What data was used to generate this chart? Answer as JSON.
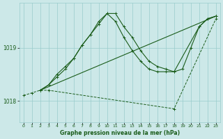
{
  "background_color": "#cce8e8",
  "grid_color": "#99cccc",
  "line_color": "#1a5c1a",
  "title": "Graphe pression niveau de la mer (hPa)",
  "xlim": [
    -0.5,
    23.5
  ],
  "ylim": [
    1017.6,
    1019.85
  ],
  "yticks": [
    1018,
    1019
  ],
  "xticks": [
    0,
    1,
    2,
    3,
    4,
    5,
    6,
    7,
    8,
    9,
    10,
    11,
    12,
    13,
    14,
    15,
    16,
    17,
    18,
    19,
    20,
    21,
    22,
    23
  ],
  "series": [
    {
      "x": [
        0,
        1,
        2,
        3,
        18,
        23
      ],
      "y": [
        1018.1,
        1018.15,
        1018.2,
        1018.2,
        1017.85,
        1019.55
      ],
      "style": "--",
      "marker": "+"
    },
    {
      "x": [
        2,
        3,
        4,
        5,
        6,
        7,
        8,
        9,
        10,
        11,
        12,
        13,
        14,
        15,
        16,
        17,
        18,
        21,
        22,
        23
      ],
      "y": [
        1018.2,
        1018.3,
        1018.45,
        1018.6,
        1018.8,
        1019.05,
        1019.25,
        1019.45,
        1019.65,
        1019.65,
        1019.4,
        1019.2,
        1018.95,
        1018.75,
        1018.65,
        1018.6,
        1018.55,
        1019.4,
        1019.55,
        1019.6
      ],
      "style": "-",
      "marker": "+"
    },
    {
      "x": [
        2,
        3,
        4,
        5,
        6,
        7,
        8,
        9,
        10,
        11,
        12,
        13,
        14,
        15,
        16,
        17,
        18,
        19,
        20,
        21,
        22,
        23
      ],
      "y": [
        1018.2,
        1018.3,
        1018.5,
        1018.65,
        1018.8,
        1019.05,
        1019.25,
        1019.5,
        1019.65,
        1019.5,
        1019.2,
        1018.95,
        1018.75,
        1018.6,
        1018.55,
        1018.55,
        1018.55,
        1018.6,
        1019.0,
        1019.4,
        1019.55,
        1019.6
      ],
      "style": "-",
      "marker": "+"
    },
    {
      "x": [
        2,
        23
      ],
      "y": [
        1018.2,
        1019.6
      ],
      "style": "-",
      "marker": "+"
    }
  ]
}
